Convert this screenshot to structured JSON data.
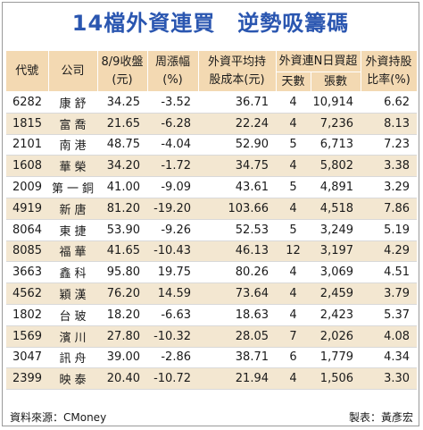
{
  "title": "14檔外資連買　逆勢吸籌碼",
  "headers": {
    "code": "代號",
    "company": "公司",
    "close_line1": "8/9收盤",
    "close_line2": "(元)",
    "weekly_line1": "周漲幅",
    "weekly_line2": "(%)",
    "cost_line1": "外資平均持",
    "cost_line2": "股成本(元)",
    "buy_group": "外資連N日買超",
    "days": "天數",
    "lots": "張數",
    "ratio_line1": "外資持股",
    "ratio_line2": "比率(%)"
  },
  "rows": [
    {
      "code": "6282",
      "name": "康舒",
      "close": "34.25",
      "change": "-3.52",
      "cost": "36.71",
      "days": "4",
      "lots": "10,914",
      "ratio": "6.62"
    },
    {
      "code": "1815",
      "name": "富喬",
      "close": "21.65",
      "change": "-6.28",
      "cost": "22.24",
      "days": "4",
      "lots": "7,236",
      "ratio": "8.13"
    },
    {
      "code": "2101",
      "name": "南港",
      "close": "48.75",
      "change": "-4.04",
      "cost": "52.90",
      "days": "5",
      "lots": "6,713",
      "ratio": "7.23"
    },
    {
      "code": "1608",
      "name": "華榮",
      "close": "34.20",
      "change": "-1.72",
      "cost": "34.75",
      "days": "4",
      "lots": "5,802",
      "ratio": "3.38"
    },
    {
      "code": "2009",
      "name": "第一銅",
      "close": "41.00",
      "change": "-9.09",
      "cost": "43.61",
      "days": "5",
      "lots": "4,891",
      "ratio": "3.29"
    },
    {
      "code": "4919",
      "name": "新唐",
      "close": "81.20",
      "change": "-19.20",
      "cost": "103.66",
      "days": "4",
      "lots": "4,518",
      "ratio": "7.86"
    },
    {
      "code": "8064",
      "name": "東捷",
      "close": "53.90",
      "change": "-9.26",
      "cost": "52.53",
      "days": "5",
      "lots": "3,249",
      "ratio": "5.19"
    },
    {
      "code": "8085",
      "name": "福華",
      "close": "41.65",
      "change": "-10.43",
      "cost": "46.13",
      "days": "12",
      "lots": "3,197",
      "ratio": "4.29"
    },
    {
      "code": "3663",
      "name": "鑫科",
      "close": "95.80",
      "change": "19.75",
      "cost": "80.26",
      "days": "4",
      "lots": "3,069",
      "ratio": "4.51"
    },
    {
      "code": "4562",
      "name": "穎漢",
      "close": "76.20",
      "change": "14.59",
      "cost": "73.64",
      "days": "4",
      "lots": "2,459",
      "ratio": "3.79"
    },
    {
      "code": "1802",
      "name": "台玻",
      "close": "18.20",
      "change": "-6.63",
      "cost": "18.63",
      "days": "4",
      "lots": "2,423",
      "ratio": "5.37"
    },
    {
      "code": "1569",
      "name": "濱川",
      "close": "27.80",
      "change": "-10.32",
      "cost": "28.05",
      "days": "7",
      "lots": "2,026",
      "ratio": "4.08"
    },
    {
      "code": "3047",
      "name": "訊舟",
      "close": "39.00",
      "change": "-2.86",
      "cost": "38.71",
      "days": "6",
      "lots": "1,779",
      "ratio": "4.34"
    },
    {
      "code": "2399",
      "name": "映泰",
      "close": "20.40",
      "change": "-10.72",
      "cost": "21.94",
      "days": "4",
      "lots": "1,506",
      "ratio": "3.30"
    }
  ],
  "footer": {
    "source": "資料來源：CMoney",
    "credit": "製表：黃彥宏"
  },
  "colors": {
    "title": "#2a56b0",
    "header_bg": "#f3d9b2",
    "stripe_bg": "#f3e7d1"
  }
}
